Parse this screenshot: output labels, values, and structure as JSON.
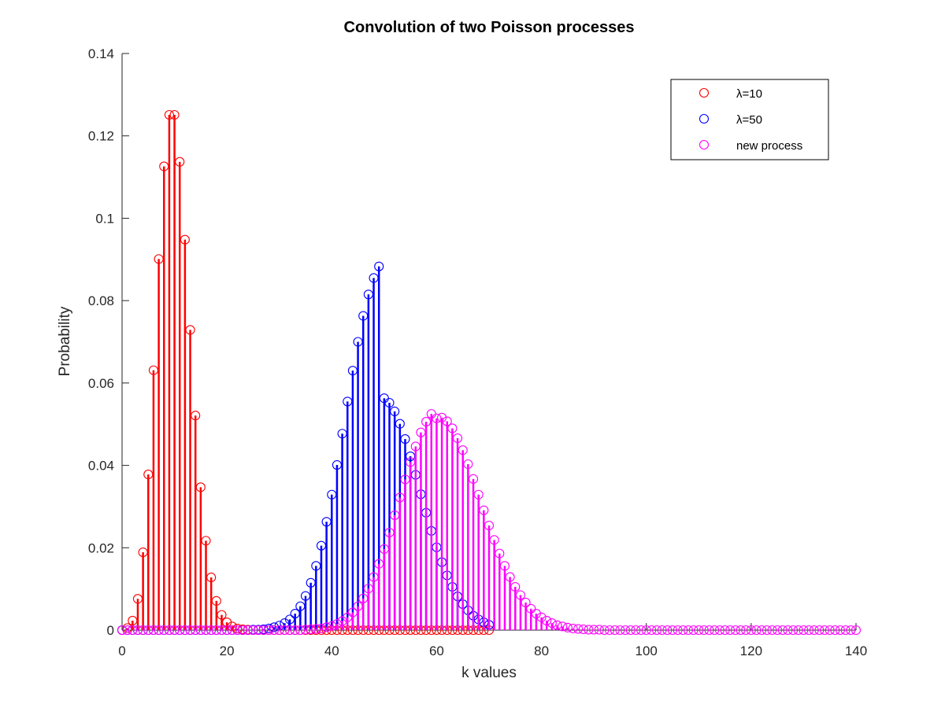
{
  "chart_data": {
    "type": "stem",
    "title": "Convolution of two Poisson processes",
    "xlabel": "k values",
    "ylabel": "Probability",
    "xlim": [
      0,
      140
    ],
    "ylim": [
      0,
      0.14
    ],
    "xticks": [
      0,
      20,
      40,
      60,
      80,
      100,
      120,
      140
    ],
    "xtick_labels": [
      "0",
      "20",
      "40",
      "60",
      "80",
      "100",
      "120",
      "140"
    ],
    "yticks": [
      0,
      0.02,
      0.04,
      0.06,
      0.08,
      0.1,
      0.12,
      0.14
    ],
    "ytick_labels": [
      "0",
      "0.02",
      "0.04",
      "0.06",
      "0.08",
      "0.1",
      "0.12",
      "0.14"
    ],
    "legend_position": "top-right",
    "grid": false,
    "series": [
      {
        "name": "λ=10",
        "color": "#ff0000",
        "x_start": 0,
        "values": [
          0.0,
          0.0005,
          0.0023,
          0.0076,
          0.0189,
          0.0378,
          0.0631,
          0.0901,
          0.1126,
          0.1251,
          0.1251,
          0.1137,
          0.0948,
          0.0729,
          0.0521,
          0.0347,
          0.0217,
          0.0128,
          0.0071,
          0.0037,
          0.0019,
          0.0009,
          0.0004,
          0.0002,
          0.0001,
          0.0,
          0.0,
          0.0,
          0.0,
          0.0,
          0.0,
          0.0,
          0.0,
          0.0,
          0.0,
          0.0,
          0.0,
          0.0,
          0.0,
          0.0,
          0.0,
          0.0,
          0.0,
          0.0,
          0.0,
          0.0,
          0.0,
          0.0,
          0.0,
          0.0,
          0.0,
          0.0,
          0.0,
          0.0,
          0.0,
          0.0,
          0.0,
          0.0,
          0.0,
          0.0,
          0.0,
          0.0,
          0.0,
          0.0,
          0.0,
          0.0,
          0.0,
          0.0,
          0.0,
          0.0,
          0.0
        ]
      },
      {
        "name": "λ=50",
        "color": "#0000ff",
        "x_start": 0,
        "values": [
          0.0,
          0.0,
          0.0,
          0.0,
          0.0,
          0.0,
          0.0,
          0.0,
          0.0,
          0.0,
          0.0,
          0.0,
          0.0,
          0.0,
          0.0,
          0.0,
          0.0,
          0.0,
          0.0,
          0.0,
          0.0,
          0.0,
          0.0,
          0.0,
          0.0,
          0.0001,
          0.0001,
          0.0002,
          0.0004,
          0.0007,
          0.0011,
          0.0017,
          0.0026,
          0.004,
          0.0058,
          0.0083,
          0.0115,
          0.0156,
          0.0205,
          0.0263,
          0.0329,
          0.0401,
          0.0477,
          0.0555,
          0.063,
          0.07,
          0.0763,
          0.0815,
          0.0855,
          0.0883,
          0.0563,
          0.0552,
          0.0531,
          0.0501,
          0.0464,
          0.0422,
          0.0377,
          0.033,
          0.0285,
          0.0241,
          0.0201,
          0.0165,
          0.0133,
          0.0105,
          0.0082,
          0.0063,
          0.0048,
          0.0035,
          0.0026,
          0.0019,
          0.0013
        ]
      },
      {
        "name": "new process",
        "color": "#ff00ff",
        "x_start": 0,
        "values": [
          0.0,
          0.0,
          0.0,
          0.0,
          0.0,
          0.0,
          0.0,
          0.0,
          0.0,
          0.0,
          0.0,
          0.0,
          0.0,
          0.0,
          0.0,
          0.0,
          0.0,
          0.0,
          0.0,
          0.0,
          0.0,
          0.0,
          0.0,
          0.0,
          0.0,
          0.0,
          0.0,
          0.0,
          0.0,
          0.0,
          0.0,
          0.0,
          0.0,
          0.0,
          0.0,
          0.0001,
          0.0002,
          0.0003,
          0.0004,
          0.0007,
          0.001,
          0.0015,
          0.0022,
          0.0031,
          0.0043,
          0.0058,
          0.0077,
          0.0101,
          0.0129,
          0.0161,
          0.0197,
          0.0237,
          0.0279,
          0.0322,
          0.0366,
          0.0408,
          0.0446,
          0.048,
          0.0506,
          0.0525,
          0.0514,
          0.0516,
          0.0507,
          0.049,
          0.0466,
          0.0437,
          0.0403,
          0.0367,
          0.0329,
          0.0291,
          0.0254,
          0.0219,
          0.0186,
          0.0156,
          0.0129,
          0.0105,
          0.0085,
          0.0067,
          0.0052,
          0.004,
          0.0031,
          0.0023,
          0.0017,
          0.0012,
          0.0009,
          0.0006,
          0.0004,
          0.0003,
          0.0002,
          0.0001,
          0.0001,
          0.0001,
          0.0,
          0.0,
          0.0,
          0.0,
          0.0,
          0.0,
          0.0,
          0.0,
          0.0,
          0.0,
          0.0,
          0.0,
          0.0,
          0.0,
          0.0,
          0.0,
          0.0,
          0.0,
          0.0,
          0.0,
          0.0,
          0.0,
          0.0,
          0.0,
          0.0,
          0.0,
          0.0,
          0.0,
          0.0,
          0.0,
          0.0,
          0.0,
          0.0,
          0.0,
          0.0,
          0.0,
          0.0,
          0.0,
          0.0,
          0.0,
          0.0,
          0.0,
          0.0,
          0.0,
          0.0,
          0.0,
          0.0,
          0.0,
          0.0
        ]
      }
    ]
  }
}
